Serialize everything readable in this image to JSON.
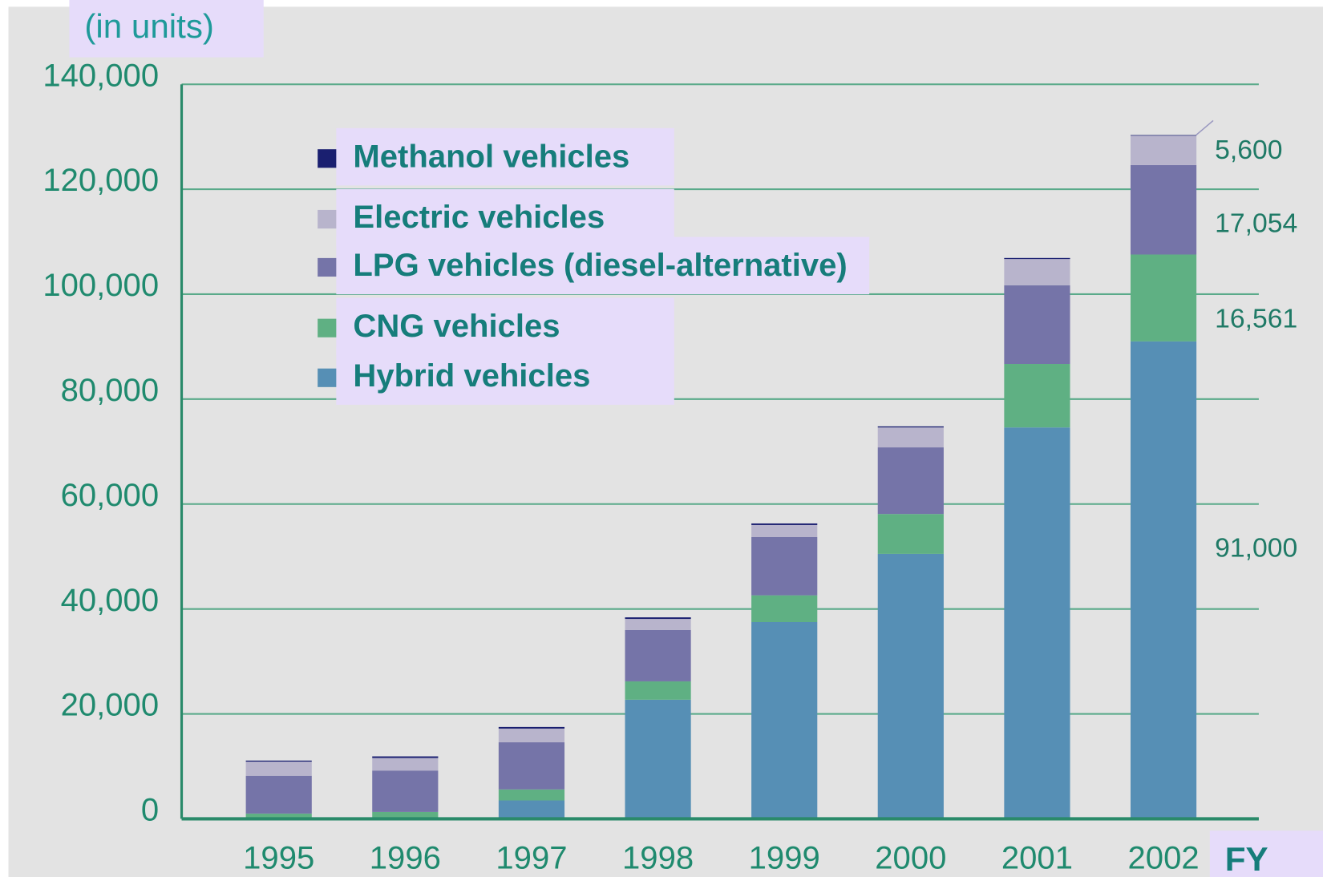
{
  "chart_data": {
    "type": "stacked_bar",
    "y_unit_label": "(in units)",
    "x_axis_label": "FY",
    "categories": [
      "1995",
      "1996",
      "1997",
      "1998",
      "1999",
      "2000",
      "2001",
      "2002"
    ],
    "series": [
      {
        "name": "Hybrid vehicles",
        "color": "#568fb5",
        "values": [
          0,
          0,
          3500,
          22700,
          37500,
          50500,
          74600,
          91000
        ],
        "value_labels": [
          null,
          null,
          null,
          null,
          null,
          null,
          null,
          "91,000"
        ]
      },
      {
        "name": "CNG vehicles",
        "color": "#5fb083",
        "values": [
          1000,
          1300,
          2100,
          3500,
          5100,
          7600,
          12100,
          16561
        ],
        "value_labels": [
          null,
          null,
          null,
          null,
          null,
          null,
          null,
          "16,561"
        ]
      },
      {
        "name": "LPG vehicles (diesel-alternative)",
        "color": "#7574a8",
        "values": [
          7200,
          7900,
          9000,
          9800,
          11100,
          12700,
          15000,
          17054
        ],
        "value_labels": [
          null,
          null,
          null,
          null,
          null,
          null,
          null,
          "17,054"
        ]
      },
      {
        "name": "Electric vehicles",
        "color": "#b8b4cc",
        "values": [
          2700,
          2400,
          2600,
          2100,
          2300,
          3800,
          5000,
          5600
        ],
        "value_labels": [
          null,
          null,
          null,
          null,
          null,
          null,
          null,
          "5,600"
        ]
      },
      {
        "name": "Methanol vehicles",
        "color": "#1a1f70",
        "values": [
          200,
          300,
          300,
          300,
          300,
          200,
          200,
          114
        ]
      }
    ],
    "ylim": [
      0,
      140000
    ],
    "yticks": [
      0,
      {
        "value": 20000,
        "label": "20,000"
      },
      {
        "value": 40000,
        "label": "40,000"
      },
      {
        "value": 60000,
        "label": "60,000"
      },
      {
        "value": 80000,
        "label": "80,000"
      },
      {
        "value": 100000,
        "label": "100,000"
      },
      {
        "value": 120000,
        "label": "120,000"
      },
      {
        "value": 140000,
        "label": "140,000"
      }
    ],
    "grid": true
  }
}
